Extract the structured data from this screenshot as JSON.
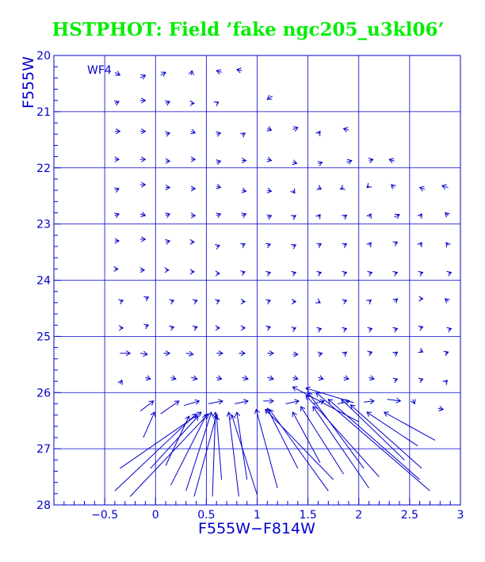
{
  "chart_data": {
    "type": "vector-field",
    "title": "HSTPHOT: Field ’fake ngc205_u3kl06’",
    "xlabel": "F555W−F814W",
    "ylabel": "F555W",
    "panel_label": "WF4",
    "xlim": [
      -1.0,
      3.0
    ],
    "ylim": [
      28,
      20
    ],
    "y_inverted": true,
    "grid": true,
    "xticks": [
      -0.5,
      0,
      0.5,
      1,
      1.5,
      2,
      2.5,
      3
    ],
    "xtick_labels": [
      "−0.5",
      "0",
      "0.5",
      "1",
      "1.5",
      "2",
      "2.5",
      "3"
    ],
    "yticks": [
      20,
      21,
      22,
      23,
      24,
      25,
      26,
      27,
      28
    ],
    "ytick_labels": [
      "20",
      "21",
      "22",
      "23",
      "24",
      "25",
      "26",
      "27",
      "28"
    ],
    "vectors_note": "arrows point from recovered (x, y) to input (x2, y2)",
    "vectors": [
      {
        "x": -0.4,
        "y": 20.3,
        "x2": -0.35,
        "y2": 20.35
      },
      {
        "x": -0.15,
        "y": 20.4,
        "x2": -0.1,
        "y2": 20.35
      },
      {
        "x": 0.05,
        "y": 20.35,
        "x2": 0.1,
        "y2": 20.3
      },
      {
        "x": 0.35,
        "y": 20.35,
        "x2": 0.36,
        "y2": 20.27
      },
      {
        "x": 0.65,
        "y": 20.3,
        "x2": 0.6,
        "y2": 20.27
      },
      {
        "x": 0.85,
        "y": 20.27,
        "x2": 0.8,
        "y2": 20.25
      },
      {
        "x": -0.4,
        "y": 20.85,
        "x2": -0.36,
        "y2": 20.82
      },
      {
        "x": -0.15,
        "y": 20.8,
        "x2": -0.1,
        "y2": 20.8
      },
      {
        "x": 0.1,
        "y": 20.85,
        "x2": 0.14,
        "y2": 20.82
      },
      {
        "x": 0.35,
        "y": 20.85,
        "x2": 0.38,
        "y2": 20.85
      },
      {
        "x": 0.6,
        "y": 20.85,
        "x2": 0.62,
        "y2": 20.83
      },
      {
        "x": 1.15,
        "y": 20.72,
        "x2": 1.1,
        "y2": 20.78
      },
      {
        "x": -0.4,
        "y": 21.35,
        "x2": -0.35,
        "y2": 21.35
      },
      {
        "x": -0.15,
        "y": 21.35,
        "x2": -0.1,
        "y2": 21.35
      },
      {
        "x": 0.1,
        "y": 21.4,
        "x2": 0.14,
        "y2": 21.38
      },
      {
        "x": 0.35,
        "y": 21.35,
        "x2": 0.39,
        "y2": 21.38
      },
      {
        "x": 0.6,
        "y": 21.4,
        "x2": 0.64,
        "y2": 21.38
      },
      {
        "x": 0.85,
        "y": 21.42,
        "x2": 0.88,
        "y2": 21.38
      },
      {
        "x": 1.1,
        "y": 21.3,
        "x2": 1.14,
        "y2": 21.33
      },
      {
        "x": 1.35,
        "y": 21.32,
        "x2": 1.4,
        "y2": 21.28
      },
      {
        "x": 1.6,
        "y": 21.4,
        "x2": 1.62,
        "y2": 21.35
      },
      {
        "x": 1.9,
        "y": 21.33,
        "x2": 1.85,
        "y2": 21.3
      },
      {
        "x": -0.4,
        "y": 21.85,
        "x2": -0.36,
        "y2": 21.85
      },
      {
        "x": -0.15,
        "y": 21.85,
        "x2": -0.1,
        "y2": 21.85
      },
      {
        "x": 0.1,
        "y": 21.88,
        "x2": 0.14,
        "y2": 21.88
      },
      {
        "x": 0.35,
        "y": 21.85,
        "x2": 0.39,
        "y2": 21.85
      },
      {
        "x": 0.6,
        "y": 21.9,
        "x2": 0.64,
        "y2": 21.88
      },
      {
        "x": 0.85,
        "y": 21.87,
        "x2": 0.89,
        "y2": 21.87
      },
      {
        "x": 1.1,
        "y": 21.85,
        "x2": 1.14,
        "y2": 21.87
      },
      {
        "x": 1.35,
        "y": 21.9,
        "x2": 1.39,
        "y2": 21.92
      },
      {
        "x": 1.6,
        "y": 21.93,
        "x2": 1.64,
        "y2": 21.9
      },
      {
        "x": 1.88,
        "y": 21.9,
        "x2": 1.93,
        "y2": 21.87
      },
      {
        "x": 2.1,
        "y": 21.87,
        "x2": 2.14,
        "y2": 21.85
      },
      {
        "x": 2.35,
        "y": 21.88,
        "x2": 2.3,
        "y2": 21.85
      },
      {
        "x": -0.4,
        "y": 22.4,
        "x2": -0.36,
        "y2": 22.37
      },
      {
        "x": -0.15,
        "y": 22.3,
        "x2": -0.1,
        "y2": 22.3
      },
      {
        "x": 0.1,
        "y": 22.35,
        "x2": 0.14,
        "y2": 22.35
      },
      {
        "x": 0.35,
        "y": 22.37,
        "x2": 0.39,
        "y2": 22.37
      },
      {
        "x": 0.6,
        "y": 22.33,
        "x2": 0.64,
        "y2": 22.35
      },
      {
        "x": 0.85,
        "y": 22.4,
        "x2": 0.89,
        "y2": 22.42
      },
      {
        "x": 1.1,
        "y": 22.4,
        "x2": 1.14,
        "y2": 22.42
      },
      {
        "x": 1.35,
        "y": 22.4,
        "x2": 1.37,
        "y2": 22.45
      },
      {
        "x": 1.6,
        "y": 22.35,
        "x2": 1.63,
        "y2": 22.38
      },
      {
        "x": 1.85,
        "y": 22.35,
        "x2": 1.82,
        "y2": 22.38
      },
      {
        "x": 2.1,
        "y": 22.32,
        "x2": 2.08,
        "y2": 22.35
      },
      {
        "x": 2.35,
        "y": 22.35,
        "x2": 2.32,
        "y2": 22.3
      },
      {
        "x": 2.65,
        "y": 22.38,
        "x2": 2.6,
        "y2": 22.35
      },
      {
        "x": 2.88,
        "y": 22.35,
        "x2": 2.82,
        "y2": 22.32
      },
      {
        "x": -0.4,
        "y": 22.85,
        "x2": -0.36,
        "y2": 22.82
      },
      {
        "x": -0.15,
        "y": 22.82,
        "x2": -0.1,
        "y2": 22.85
      },
      {
        "x": 0.1,
        "y": 22.85,
        "x2": 0.14,
        "y2": 22.82
      },
      {
        "x": 0.35,
        "y": 22.85,
        "x2": 0.39,
        "y2": 22.85
      },
      {
        "x": 0.6,
        "y": 22.85,
        "x2": 0.64,
        "y2": 22.82
      },
      {
        "x": 0.85,
        "y": 22.85,
        "x2": 0.89,
        "y2": 22.82
      },
      {
        "x": 1.1,
        "y": 22.88,
        "x2": 1.14,
        "y2": 22.85
      },
      {
        "x": 1.35,
        "y": 22.88,
        "x2": 1.38,
        "y2": 22.85
      },
      {
        "x": 1.6,
        "y": 22.88,
        "x2": 1.62,
        "y2": 22.83
      },
      {
        "x": 1.85,
        "y": 22.88,
        "x2": 1.88,
        "y2": 22.84
      },
      {
        "x": 2.1,
        "y": 22.88,
        "x2": 2.12,
        "y2": 22.82
      },
      {
        "x": 2.35,
        "y": 22.88,
        "x2": 2.4,
        "y2": 22.83
      },
      {
        "x": 2.6,
        "y": 22.87,
        "x2": 2.62,
        "y2": 22.82
      },
      {
        "x": 2.88,
        "y": 22.85,
        "x2": 2.85,
        "y2": 22.8
      },
      {
        "x": -0.4,
        "y": 23.3,
        "x2": -0.36,
        "y2": 23.3
      },
      {
        "x": -0.15,
        "y": 23.27,
        "x2": -0.1,
        "y2": 23.27
      },
      {
        "x": 0.1,
        "y": 23.32,
        "x2": 0.14,
        "y2": 23.3
      },
      {
        "x": 0.35,
        "y": 23.32,
        "x2": 0.38,
        "y2": 23.32
      },
      {
        "x": 0.6,
        "y": 23.4,
        "x2": 0.63,
        "y2": 23.38
      },
      {
        "x": 0.85,
        "y": 23.38,
        "x2": 0.88,
        "y2": 23.35
      },
      {
        "x": 1.1,
        "y": 23.38,
        "x2": 1.13,
        "y2": 23.36
      },
      {
        "x": 1.35,
        "y": 23.4,
        "x2": 1.38,
        "y2": 23.37
      },
      {
        "x": 1.6,
        "y": 23.38,
        "x2": 1.63,
        "y2": 23.35
      },
      {
        "x": 1.85,
        "y": 23.38,
        "x2": 1.88,
        "y2": 23.35
      },
      {
        "x": 2.1,
        "y": 23.38,
        "x2": 2.12,
        "y2": 23.33
      },
      {
        "x": 2.35,
        "y": 23.35,
        "x2": 2.38,
        "y2": 23.32
      },
      {
        "x": 2.6,
        "y": 23.38,
        "x2": 2.62,
        "y2": 23.33
      },
      {
        "x": 2.88,
        "y": 23.38,
        "x2": 2.86,
        "y2": 23.33
      },
      {
        "x": -0.4,
        "y": 23.8,
        "x2": -0.37,
        "y2": 23.8
      },
      {
        "x": -0.15,
        "y": 23.82,
        "x2": -0.11,
        "y2": 23.82
      },
      {
        "x": 0.1,
        "y": 23.82,
        "x2": 0.13,
        "y2": 23.82
      },
      {
        "x": 0.35,
        "y": 23.85,
        "x2": 0.38,
        "y2": 23.85
      },
      {
        "x": 0.6,
        "y": 23.88,
        "x2": 0.63,
        "y2": 23.88
      },
      {
        "x": 0.85,
        "y": 23.87,
        "x2": 0.88,
        "y2": 23.85
      },
      {
        "x": 1.1,
        "y": 23.88,
        "x2": 1.13,
        "y2": 23.86
      },
      {
        "x": 1.35,
        "y": 23.88,
        "x2": 1.38,
        "y2": 23.86
      },
      {
        "x": 1.6,
        "y": 23.88,
        "x2": 1.63,
        "y2": 23.86
      },
      {
        "x": 1.85,
        "y": 23.88,
        "x2": 1.88,
        "y2": 23.86
      },
      {
        "x": 2.1,
        "y": 23.88,
        "x2": 2.13,
        "y2": 23.86
      },
      {
        "x": 2.35,
        "y": 23.88,
        "x2": 2.38,
        "y2": 23.86
      },
      {
        "x": 2.6,
        "y": 23.88,
        "x2": 2.63,
        "y2": 23.86
      },
      {
        "x": 2.88,
        "y": 23.88,
        "x2": 2.91,
        "y2": 23.86
      },
      {
        "x": -0.35,
        "y": 24.38,
        "x2": -0.32,
        "y2": 24.36
      },
      {
        "x": -0.1,
        "y": 24.33,
        "x2": -0.07,
        "y2": 24.3
      },
      {
        "x": 0.15,
        "y": 24.38,
        "x2": 0.18,
        "y2": 24.36
      },
      {
        "x": 0.38,
        "y": 24.38,
        "x2": 0.41,
        "y2": 24.36
      },
      {
        "x": 0.6,
        "y": 24.38,
        "x2": 0.63,
        "y2": 24.36
      },
      {
        "x": 0.85,
        "y": 24.38,
        "x2": 0.88,
        "y2": 24.38
      },
      {
        "x": 1.1,
        "y": 24.38,
        "x2": 1.13,
        "y2": 24.36
      },
      {
        "x": 1.35,
        "y": 24.38,
        "x2": 1.38,
        "y2": 24.38
      },
      {
        "x": 1.6,
        "y": 24.38,
        "x2": 1.62,
        "y2": 24.4
      },
      {
        "x": 1.85,
        "y": 24.38,
        "x2": 1.88,
        "y2": 24.36
      },
      {
        "x": 2.1,
        "y": 24.38,
        "x2": 2.12,
        "y2": 24.35
      },
      {
        "x": 2.35,
        "y": 24.38,
        "x2": 2.38,
        "y2": 24.33
      },
      {
        "x": 2.6,
        "y": 24.33,
        "x2": 2.63,
        "y2": 24.33
      },
      {
        "x": 2.88,
        "y": 24.38,
        "x2": 2.85,
        "y2": 24.33
      },
      {
        "x": -0.35,
        "y": 24.85,
        "x2": -0.32,
        "y2": 24.85
      },
      {
        "x": -0.1,
        "y": 24.82,
        "x2": -0.07,
        "y2": 24.8
      },
      {
        "x": 0.15,
        "y": 24.85,
        "x2": 0.18,
        "y2": 24.83
      },
      {
        "x": 0.38,
        "y": 24.85,
        "x2": 0.41,
        "y2": 24.83
      },
      {
        "x": 0.6,
        "y": 24.85,
        "x2": 0.63,
        "y2": 24.85
      },
      {
        "x": 0.85,
        "y": 24.85,
        "x2": 0.88,
        "y2": 24.85
      },
      {
        "x": 1.1,
        "y": 24.85,
        "x2": 1.13,
        "y2": 24.83
      },
      {
        "x": 1.35,
        "y": 24.87,
        "x2": 1.38,
        "y2": 24.85
      },
      {
        "x": 1.6,
        "y": 24.88,
        "x2": 1.63,
        "y2": 24.86
      },
      {
        "x": 1.85,
        "y": 24.88,
        "x2": 1.88,
        "y2": 24.86
      },
      {
        "x": 2.1,
        "y": 24.88,
        "x2": 2.13,
        "y2": 24.86
      },
      {
        "x": 2.35,
        "y": 24.88,
        "x2": 2.38,
        "y2": 24.86
      },
      {
        "x": 2.6,
        "y": 24.85,
        "x2": 2.63,
        "y2": 24.83
      },
      {
        "x": 2.88,
        "y": 24.88,
        "x2": 2.91,
        "y2": 24.86
      },
      {
        "x": -0.35,
        "y": 25.3,
        "x2": -0.25,
        "y2": 25.3
      },
      {
        "x": -0.15,
        "y": 25.3,
        "x2": -0.08,
        "y2": 25.32
      },
      {
        "x": 0.08,
        "y": 25.3,
        "x2": 0.14,
        "y2": 25.3
      },
      {
        "x": 0.3,
        "y": 25.3,
        "x2": 0.37,
        "y2": 25.32
      },
      {
        "x": 0.6,
        "y": 25.3,
        "x2": 0.66,
        "y2": 25.3
      },
      {
        "x": 0.82,
        "y": 25.3,
        "x2": 0.88,
        "y2": 25.3
      },
      {
        "x": 1.1,
        "y": 25.3,
        "x2": 1.16,
        "y2": 25.3
      },
      {
        "x": 1.35,
        "y": 25.32,
        "x2": 1.4,
        "y2": 25.32
      },
      {
        "x": 1.6,
        "y": 25.32,
        "x2": 1.64,
        "y2": 25.3
      },
      {
        "x": 1.85,
        "y": 25.32,
        "x2": 1.88,
        "y2": 25.28
      },
      {
        "x": 2.1,
        "y": 25.3,
        "x2": 2.13,
        "y2": 25.28
      },
      {
        "x": 2.35,
        "y": 25.32,
        "x2": 2.38,
        "y2": 25.28
      },
      {
        "x": 2.6,
        "y": 25.25,
        "x2": 2.63,
        "y2": 25.28
      },
      {
        "x": 2.85,
        "y": 25.3,
        "x2": 2.88,
        "y2": 25.28
      },
      {
        "x": -0.35,
        "y": 25.85,
        "x2": -0.33,
        "y2": 25.78
      },
      {
        "x": -0.1,
        "y": 25.73,
        "x2": -0.05,
        "y2": 25.76
      },
      {
        "x": 0.15,
        "y": 25.73,
        "x2": 0.2,
        "y2": 25.76
      },
      {
        "x": 0.35,
        "y": 25.73,
        "x2": 0.41,
        "y2": 25.76
      },
      {
        "x": 0.6,
        "y": 25.73,
        "x2": 0.65,
        "y2": 25.76
      },
      {
        "x": 0.85,
        "y": 25.73,
        "x2": 0.91,
        "y2": 25.76
      },
      {
        "x": 1.1,
        "y": 25.73,
        "x2": 1.16,
        "y2": 25.76
      },
      {
        "x": 1.35,
        "y": 25.73,
        "x2": 1.4,
        "y2": 25.76
      },
      {
        "x": 1.6,
        "y": 25.73,
        "x2": 1.65,
        "y2": 25.76
      },
      {
        "x": 1.85,
        "y": 25.73,
        "x2": 1.9,
        "y2": 25.76
      },
      {
        "x": 2.1,
        "y": 25.73,
        "x2": 2.15,
        "y2": 25.76
      },
      {
        "x": 2.35,
        "y": 25.78,
        "x2": 2.38,
        "y2": 25.76
      },
      {
        "x": 2.6,
        "y": 25.78,
        "x2": 2.63,
        "y2": 25.76
      },
      {
        "x": 2.85,
        "y": 25.82,
        "x2": 2.87,
        "y2": 25.78
      },
      {
        "x": -0.15,
        "y": 26.33,
        "x2": -0.02,
        "y2": 26.15
      },
      {
        "x": -0.12,
        "y": 26.8,
        "x2": -0.01,
        "y2": 26.35
      },
      {
        "x": 0.05,
        "y": 26.38,
        "x2": 0.23,
        "y2": 26.15
      },
      {
        "x": 0.28,
        "y": 26.23,
        "x2": 0.43,
        "y2": 26.15
      },
      {
        "x": 0.52,
        "y": 26.2,
        "x2": 0.66,
        "y2": 26.15
      },
      {
        "x": 0.78,
        "y": 26.2,
        "x2": 0.91,
        "y2": 26.15
      },
      {
        "x": 1.06,
        "y": 26.15,
        "x2": 1.16,
        "y2": 26.15
      },
      {
        "x": 1.28,
        "y": 26.2,
        "x2": 1.41,
        "y2": 26.15
      },
      {
        "x": 1.55,
        "y": 26.2,
        "x2": 1.66,
        "y2": 26.15
      },
      {
        "x": 1.79,
        "y": 26.2,
        "x2": 1.91,
        "y2": 26.15
      },
      {
        "x": 2.05,
        "y": 26.17,
        "x2": 2.15,
        "y2": 26.15
      },
      {
        "x": 2.28,
        "y": 26.12,
        "x2": 2.41,
        "y2": 26.15
      },
      {
        "x": 2.53,
        "y": 26.12,
        "x2": 2.55,
        "y2": 26.2
      },
      {
        "x": 2.78,
        "y": 26.28,
        "x2": 2.83,
        "y2": 26.3
      },
      {
        "x": -0.35,
        "y": 27.35,
        "x2": 0.45,
        "y2": 26.35
      },
      {
        "x": -0.4,
        "y": 27.75,
        "x2": 0.4,
        "y2": 26.38
      },
      {
        "x": -0.25,
        "y": 27.85,
        "x2": 0.52,
        "y2": 26.38
      },
      {
        "x": -0.05,
        "y": 27.35,
        "x2": 0.42,
        "y2": 26.42
      },
      {
        "x": 0.1,
        "y": 27.3,
        "x2": 0.33,
        "y2": 26.42
      },
      {
        "x": 0.15,
        "y": 27.65,
        "x2": 0.5,
        "y2": 26.4
      },
      {
        "x": 0.3,
        "y": 27.75,
        "x2": 0.55,
        "y2": 26.35
      },
      {
        "x": 0.38,
        "y": 27.85,
        "x2": 0.6,
        "y2": 26.4
      },
      {
        "x": 0.56,
        "y": 27.85,
        "x2": 0.59,
        "y2": 26.35
      },
      {
        "x": 0.65,
        "y": 27.55,
        "x2": 0.6,
        "y2": 26.42
      },
      {
        "x": 0.82,
        "y": 27.85,
        "x2": 0.72,
        "y2": 26.35
      },
      {
        "x": 0.9,
        "y": 27.55,
        "x2": 0.8,
        "y2": 26.35
      },
      {
        "x": 1.0,
        "y": 27.82,
        "x2": 0.75,
        "y2": 26.4
      },
      {
        "x": 1.2,
        "y": 27.7,
        "x2": 0.99,
        "y2": 26.3
      },
      {
        "x": 1.4,
        "y": 27.35,
        "x2": 1.1,
        "y2": 26.28
      },
      {
        "x": 1.7,
        "y": 27.75,
        "x2": 1.12,
        "y2": 26.3
      },
      {
        "x": 1.75,
        "y": 27.55,
        "x2": 1.08,
        "y2": 26.3
      },
      {
        "x": 1.62,
        "y": 27.25,
        "x2": 1.35,
        "y2": 26.35
      },
      {
        "x": 1.85,
        "y": 27.45,
        "x2": 1.43,
        "y2": 26.25
      },
      {
        "x": 2.1,
        "y": 27.7,
        "x2": 1.55,
        "y2": 26.25
      },
      {
        "x": 2.2,
        "y": 27.5,
        "x2": 1.48,
        "y2": 26.05
      },
      {
        "x": 2.05,
        "y": 27.35,
        "x2": 1.5,
        "y2": 26.0
      },
      {
        "x": 2.6,
        "y": 27.55,
        "x2": 1.7,
        "y2": 26.12
      },
      {
        "x": 2.7,
        "y": 27.75,
        "x2": 1.58,
        "y2": 26.0
      },
      {
        "x": 2.45,
        "y": 27.2,
        "x2": 1.83,
        "y2": 26.12
      },
      {
        "x": 2.62,
        "y": 27.35,
        "x2": 1.92,
        "y2": 26.22
      },
      {
        "x": 2.58,
        "y": 26.95,
        "x2": 2.08,
        "y2": 26.35
      },
      {
        "x": 2.75,
        "y": 26.85,
        "x2": 2.25,
        "y2": 26.35
      },
      {
        "x": 2.0,
        "y": 26.52,
        "x2": 1.35,
        "y2": 25.9
      },
      {
        "x": 1.95,
        "y": 26.18,
        "x2": 1.48,
        "y2": 25.92
      }
    ]
  },
  "colors": {
    "axes": "#0000cc",
    "arrows": "#0000cc",
    "title": "#00ee00",
    "background": "#ffffff"
  }
}
